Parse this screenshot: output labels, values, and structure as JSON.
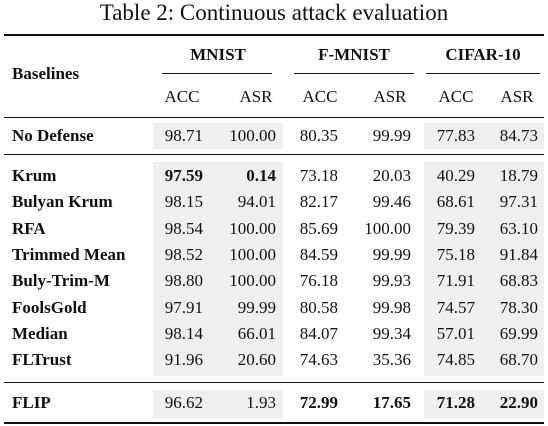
{
  "caption": "Table 2: Continuous attack evaluation",
  "header": {
    "baselines_label": "Baselines",
    "groups": [
      "MNIST",
      "F-MNIST",
      "CIFAR-10"
    ],
    "subcolumns": [
      "ACC",
      "ASR",
      "ACC",
      "ASR",
      "ACC",
      "ASR"
    ]
  },
  "sections": [
    {
      "rows": [
        {
          "name": "No Defense",
          "values": [
            "98.71",
            "100.00",
            "80.35",
            "99.99",
            "77.83",
            "84.73"
          ],
          "bold": [
            false,
            false,
            false,
            false,
            false,
            false
          ]
        }
      ]
    },
    {
      "rows": [
        {
          "name": "Krum",
          "values": [
            "97.59",
            "0.14",
            "73.18",
            "20.03",
            "40.29",
            "18.79"
          ],
          "bold": [
            true,
            true,
            false,
            false,
            false,
            false
          ]
        },
        {
          "name": "Bulyan Krum",
          "values": [
            "98.15",
            "94.01",
            "82.17",
            "99.46",
            "68.61",
            "97.31"
          ],
          "bold": [
            false,
            false,
            false,
            false,
            false,
            false
          ]
        },
        {
          "name": "RFA",
          "values": [
            "98.54",
            "100.00",
            "85.69",
            "100.00",
            "79.39",
            "63.10"
          ],
          "bold": [
            false,
            false,
            false,
            false,
            false,
            false
          ]
        },
        {
          "name": "Trimmed Mean",
          "values": [
            "98.52",
            "100.00",
            "84.59",
            "99.99",
            "75.18",
            "91.84"
          ],
          "bold": [
            false,
            false,
            false,
            false,
            false,
            false
          ]
        },
        {
          "name": "Buly-Trim-M",
          "values": [
            "98.80",
            "100.00",
            "76.18",
            "99.93",
            "71.91",
            "68.83"
          ],
          "bold": [
            false,
            false,
            false,
            false,
            false,
            false
          ]
        },
        {
          "name": "FoolsGold",
          "values": [
            "97.91",
            "99.99",
            "80.58",
            "99.98",
            "74.57",
            "78.30"
          ],
          "bold": [
            false,
            false,
            false,
            false,
            false,
            false
          ]
        },
        {
          "name": "Median",
          "values": [
            "98.14",
            "66.01",
            "84.07",
            "99.34",
            "57.01",
            "69.99"
          ],
          "bold": [
            false,
            false,
            false,
            false,
            false,
            false
          ]
        },
        {
          "name": "FLTrust",
          "values": [
            "91.96",
            "20.60",
            "74.63",
            "35.36",
            "74.85",
            "68.70"
          ],
          "bold": [
            false,
            false,
            false,
            false,
            false,
            false
          ]
        }
      ]
    },
    {
      "rows": [
        {
          "name": "FLIP",
          "values": [
            "96.62",
            "1.93",
            "72.99",
            "17.65",
            "71.28",
            "22.90"
          ],
          "bold": [
            false,
            false,
            true,
            true,
            true,
            true
          ]
        }
      ]
    }
  ]
}
